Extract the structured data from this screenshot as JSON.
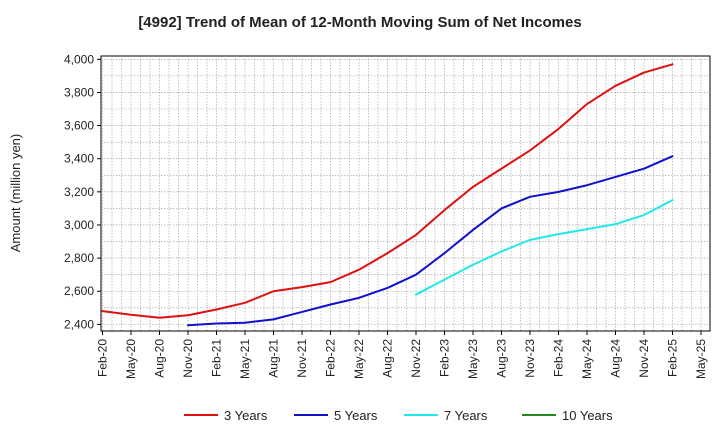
{
  "chart_data": {
    "type": "line",
    "title": "[4992]  Trend of Mean of 12-Month Moving Sum of Net Incomes",
    "ylabel": "Amount (million yen)",
    "xlabel": "",
    "ylim": [
      2360,
      4020
    ],
    "yticks": [
      2400,
      2600,
      2800,
      3000,
      3200,
      3400,
      3600,
      3800,
      4000
    ],
    "ytick_labels": [
      "2,400",
      "2,600",
      "2,800",
      "3,000",
      "3,200",
      "3,400",
      "3,600",
      "3,800",
      "4,000"
    ],
    "xticks": [
      "Feb-20",
      "May-20",
      "Aug-20",
      "Nov-20",
      "Feb-21",
      "May-21",
      "Aug-21",
      "Nov-21",
      "Feb-22",
      "May-22",
      "Aug-22",
      "Nov-22",
      "Feb-23",
      "May-23",
      "Aug-23",
      "Nov-23",
      "Feb-24",
      "May-24",
      "Aug-24",
      "Nov-24",
      "Feb-25",
      "May-25"
    ],
    "grid": true,
    "legend_position": "bottom",
    "series": [
      {
        "name": "3 Years",
        "color": "#dd1111",
        "points": [
          [
            "Feb-20",
            2480
          ],
          [
            "May-20",
            2458
          ],
          [
            "Aug-20",
            2440
          ],
          [
            "Nov-20",
            2455
          ],
          [
            "Feb-21",
            2490
          ],
          [
            "May-21",
            2530
          ],
          [
            "Aug-21",
            2600
          ],
          [
            "Nov-21",
            2625
          ],
          [
            "Feb-22",
            2655
          ],
          [
            "May-22",
            2730
          ],
          [
            "Aug-22",
            2830
          ],
          [
            "Nov-22",
            2940
          ],
          [
            "Feb-23",
            3090
          ],
          [
            "May-23",
            3230
          ],
          [
            "Aug-23",
            3340
          ],
          [
            "Nov-23",
            3450
          ],
          [
            "Feb-24",
            3580
          ],
          [
            "May-24",
            3730
          ],
          [
            "Aug-24",
            3840
          ],
          [
            "Nov-24",
            3920
          ],
          [
            "Feb-25",
            3970
          ]
        ]
      },
      {
        "name": "5 Years",
        "color": "#1111cc",
        "points": [
          [
            "Nov-20",
            2395
          ],
          [
            "Feb-21",
            2405
          ],
          [
            "May-21",
            2410
          ],
          [
            "Aug-21",
            2430
          ],
          [
            "Nov-21",
            2475
          ],
          [
            "Feb-22",
            2520
          ],
          [
            "May-22",
            2560
          ],
          [
            "Aug-22",
            2620
          ],
          [
            "Nov-22",
            2700
          ],
          [
            "Feb-23",
            2830
          ],
          [
            "May-23",
            2970
          ],
          [
            "Aug-23",
            3100
          ],
          [
            "Nov-23",
            3170
          ],
          [
            "Feb-24",
            3200
          ],
          [
            "May-24",
            3240
          ],
          [
            "Aug-24",
            3290
          ],
          [
            "Nov-24",
            3340
          ],
          [
            "Feb-25",
            3415
          ]
        ]
      },
      {
        "name": "7 Years",
        "color": "#22e8e8",
        "points": [
          [
            "Nov-22",
            2580
          ],
          [
            "Feb-23",
            2670
          ],
          [
            "May-23",
            2760
          ],
          [
            "Aug-23",
            2840
          ],
          [
            "Nov-23",
            2910
          ],
          [
            "Feb-24",
            2945
          ],
          [
            "May-24",
            2975
          ],
          [
            "Aug-24",
            3005
          ],
          [
            "Nov-24",
            3060
          ],
          [
            "Feb-25",
            3150
          ]
        ]
      },
      {
        "name": "10 Years",
        "color": "#228822",
        "points": []
      }
    ]
  }
}
